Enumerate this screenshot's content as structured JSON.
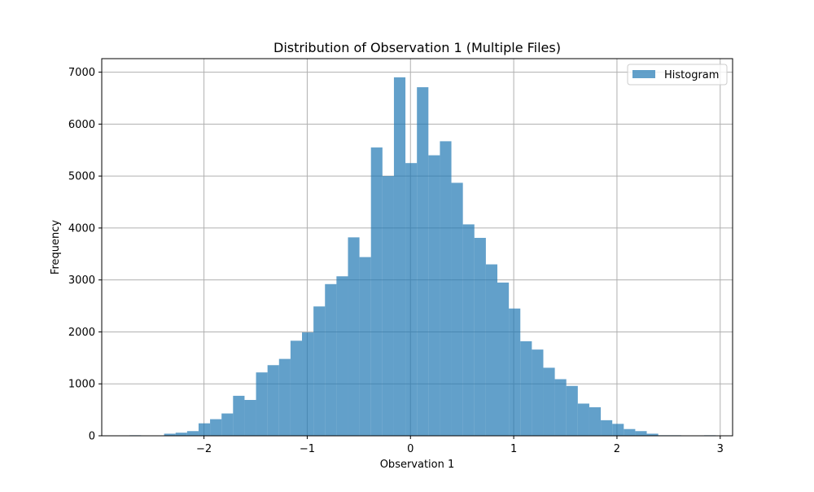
{
  "chart_data": {
    "type": "bar",
    "title": "Distribution of Observation 1 (Multiple Files)",
    "xlabel": "Observation 1",
    "ylabel": "Frequency",
    "xlim": [
      -2.99,
      3.12
    ],
    "ylim": [
      0,
      7260
    ],
    "xticks": [
      -2,
      -1,
      0,
      1,
      2,
      3
    ],
    "xtick_labels": [
      "−2",
      "−1",
      "0",
      "1",
      "2",
      "3"
    ],
    "yticks": [
      0,
      1000,
      2000,
      3000,
      4000,
      5000,
      6000,
      7000
    ],
    "ytick_labels": [
      "0",
      "1000",
      "2000",
      "3000",
      "4000",
      "5000",
      "6000",
      "7000"
    ],
    "grid": true,
    "legend_position": "top-right",
    "series": [
      {
        "name": "Histogram",
        "color": "#1f77b4",
        "alpha": 0.7,
        "bin_start": -2.72,
        "bin_width": 0.1113,
        "values": [
          10,
          0,
          0,
          40,
          60,
          90,
          240,
          320,
          430,
          770,
          690,
          1220,
          1360,
          1480,
          1830,
          1990,
          2490,
          2920,
          3070,
          3820,
          3440,
          5550,
          5000,
          6900,
          5250,
          6710,
          5400,
          5670,
          4870,
          4070,
          3810,
          3300,
          2950,
          2450,
          1820,
          1660,
          1310,
          1090,
          960,
          620,
          550,
          300,
          230,
          130,
          90,
          40,
          10,
          10,
          0,
          0,
          10,
          0
        ]
      }
    ]
  }
}
